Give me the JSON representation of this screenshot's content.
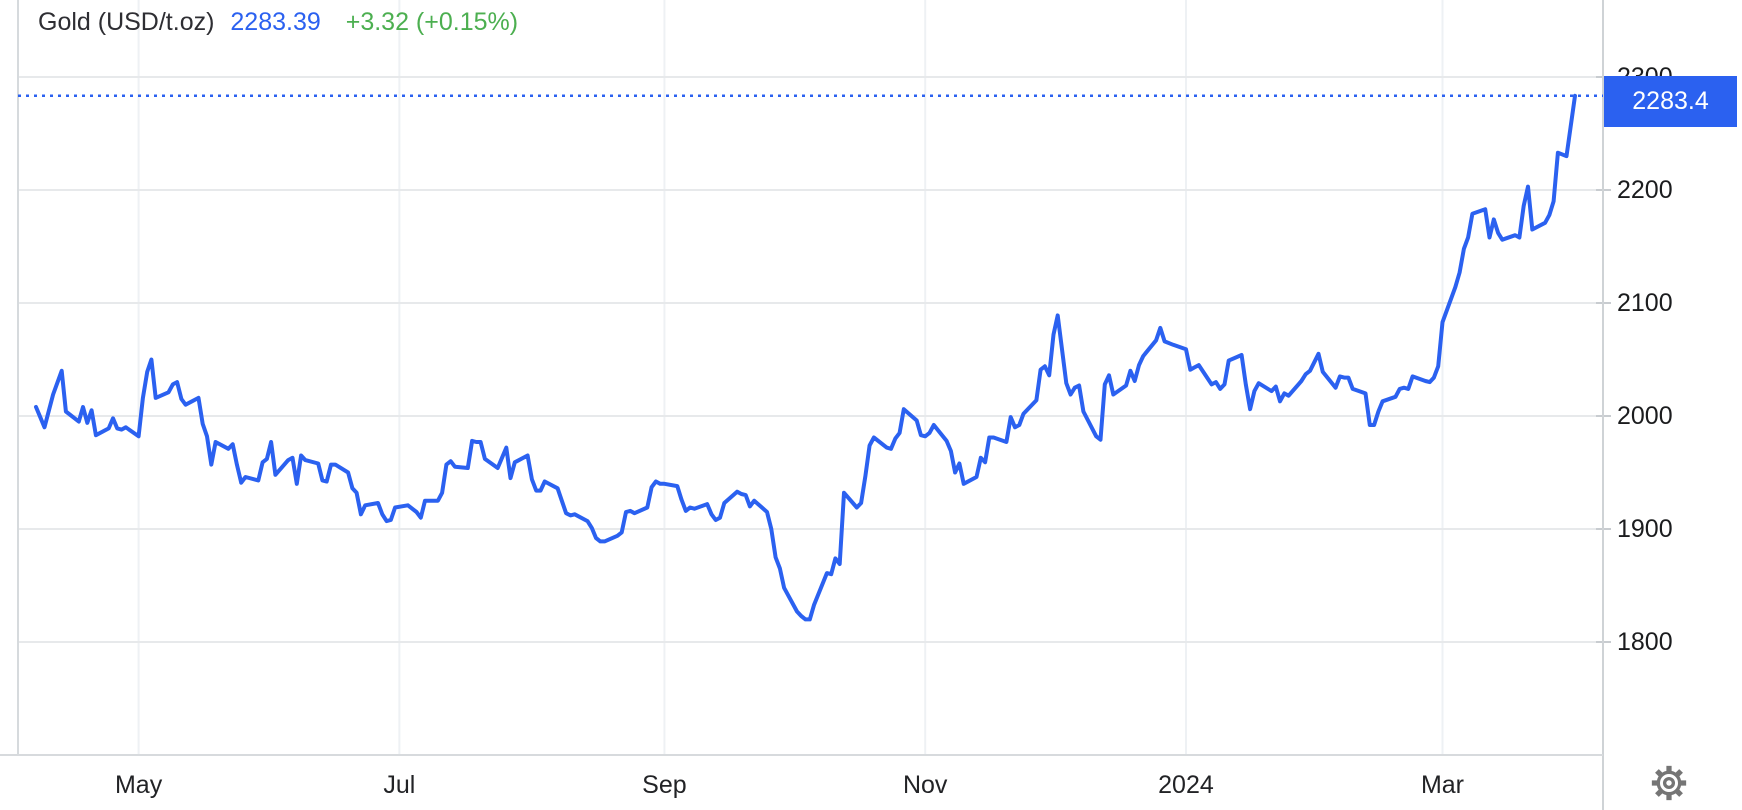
{
  "header": {
    "title": "Gold (USD/t.oz)",
    "price": "2283.39",
    "change": "+3.32 (+0.15%)"
  },
  "price_badge": {
    "label": "2283.4"
  },
  "colors": {
    "line_blue": "#2b61f0",
    "badge_blue": "#2b61f0",
    "price_blue": "#2b61f0",
    "change_green": "#4caf50",
    "h_grid": "#e7e9eb",
    "v_grid": "#eef1f4",
    "axis_border": "#cfd3d6",
    "left_border": "#d6dadd",
    "bottom_axis": "#d7dadd",
    "tick": "#c8ccd0",
    "label_dark": "#1b1c1e",
    "gear_gray": "#757575"
  },
  "chart_data": {
    "type": "line",
    "title": "Gold (USD/t.oz)",
    "ylabel": "",
    "xlabel": "",
    "legend": [],
    "grid": true,
    "current_value": 2283.4,
    "current_value_label": "2283.4",
    "ylim": [
      1700,
      2368
    ],
    "xlim_days": [
      -4.2,
      366.6
    ],
    "y_ticks": [
      2300,
      2200,
      2100,
      2000,
      1900,
      1800
    ],
    "x_ticks": [
      {
        "label": "May",
        "day": 24
      },
      {
        "label": "Jul",
        "day": 85
      },
      {
        "label": "Sep",
        "day": 147
      },
      {
        "label": "Nov",
        "day": 208
      },
      {
        "label": "2024",
        "day": 269
      },
      {
        "label": "Mar",
        "day": 329
      }
    ],
    "x_day0_date": "2023-04-07",
    "points": [
      [
        0,
        2008
      ],
      [
        2,
        1990
      ],
      [
        4,
        2019
      ],
      [
        6,
        2040
      ],
      [
        7,
        2004
      ],
      [
        10,
        1995
      ],
      [
        11,
        2008
      ],
      [
        12,
        1994
      ],
      [
        13,
        2005
      ],
      [
        14,
        1983
      ],
      [
        17,
        1989
      ],
      [
        18,
        1998
      ],
      [
        19,
        1989
      ],
      [
        20,
        1988
      ],
      [
        21,
        1990
      ],
      [
        24,
        1982
      ],
      [
        25,
        2016
      ],
      [
        26,
        2039
      ],
      [
        27,
        2050
      ],
      [
        28,
        2016
      ],
      [
        31,
        2021
      ],
      [
        32,
        2028
      ],
      [
        33,
        2030
      ],
      [
        34,
        2015
      ],
      [
        35,
        2010
      ],
      [
        38,
        2016
      ],
      [
        39,
        1993
      ],
      [
        40,
        1982
      ],
      [
        41,
        1957
      ],
      [
        42,
        1977
      ],
      [
        45,
        1971
      ],
      [
        46,
        1975
      ],
      [
        47,
        1957
      ],
      [
        48,
        1941
      ],
      [
        49,
        1946
      ],
      [
        52,
        1943
      ],
      [
        53,
        1959
      ],
      [
        54,
        1962
      ],
      [
        55,
        1977
      ],
      [
        56,
        1948
      ],
      [
        59,
        1961
      ],
      [
        60,
        1963
      ],
      [
        61,
        1940
      ],
      [
        62,
        1965
      ],
      [
        63,
        1961
      ],
      [
        66,
        1958
      ],
      [
        67,
        1943
      ],
      [
        68,
        1942
      ],
      [
        69,
        1957
      ],
      [
        70,
        1957
      ],
      [
        73,
        1950
      ],
      [
        74,
        1936
      ],
      [
        75,
        1932
      ],
      [
        76,
        1913
      ],
      [
        77,
        1921
      ],
      [
        80,
        1923
      ],
      [
        81,
        1913
      ],
      [
        82,
        1907
      ],
      [
        83,
        1908
      ],
      [
        84,
        1919
      ],
      [
        87,
        1921
      ],
      [
        89,
        1915
      ],
      [
        90,
        1910
      ],
      [
        91,
        1925
      ],
      [
        94,
        1925
      ],
      [
        95,
        1932
      ],
      [
        96,
        1957
      ],
      [
        97,
        1960
      ],
      [
        98,
        1955
      ],
      [
        101,
        1954
      ],
      [
        102,
        1978
      ],
      [
        103,
        1977
      ],
      [
        104,
        1977
      ],
      [
        105,
        1962
      ],
      [
        108,
        1954
      ],
      [
        109,
        1963
      ],
      [
        110,
        1972
      ],
      [
        111,
        1945
      ],
      [
        112,
        1959
      ],
      [
        115,
        1965
      ],
      [
        116,
        1944
      ],
      [
        117,
        1934
      ],
      [
        118,
        1934
      ],
      [
        119,
        1942
      ],
      [
        122,
        1936
      ],
      [
        123,
        1925
      ],
      [
        124,
        1914
      ],
      [
        125,
        1912
      ],
      [
        126,
        1913
      ],
      [
        129,
        1907
      ],
      [
        130,
        1901
      ],
      [
        131,
        1892
      ],
      [
        132,
        1889
      ],
      [
        133,
        1889
      ],
      [
        136,
        1894
      ],
      [
        137,
        1897
      ],
      [
        138,
        1915
      ],
      [
        139,
        1916
      ],
      [
        140,
        1914
      ],
      [
        143,
        1919
      ],
      [
        144,
        1937
      ],
      [
        145,
        1942
      ],
      [
        146,
        1940
      ],
      [
        147,
        1940
      ],
      [
        150,
        1938
      ],
      [
        151,
        1926
      ],
      [
        152,
        1916
      ],
      [
        153,
        1919
      ],
      [
        154,
        1918
      ],
      [
        157,
        1922
      ],
      [
        158,
        1913
      ],
      [
        159,
        1908
      ],
      [
        160,
        1910
      ],
      [
        161,
        1923
      ],
      [
        164,
        1933
      ],
      [
        165,
        1931
      ],
      [
        166,
        1930
      ],
      [
        167,
        1920
      ],
      [
        168,
        1925
      ],
      [
        171,
        1915
      ],
      [
        172,
        1900
      ],
      [
        173,
        1875
      ],
      [
        174,
        1865
      ],
      [
        175,
        1848
      ],
      [
        178,
        1827
      ],
      [
        179,
        1823
      ],
      [
        180,
        1820
      ],
      [
        181,
        1820
      ],
      [
        182,
        1833
      ],
      [
        185,
        1861
      ],
      [
        186,
        1860
      ],
      [
        187,
        1874
      ],
      [
        188,
        1869
      ],
      [
        189,
        1932
      ],
      [
        192,
        1919
      ],
      [
        193,
        1923
      ],
      [
        194,
        1947
      ],
      [
        195,
        1974
      ],
      [
        196,
        1981
      ],
      [
        199,
        1972
      ],
      [
        200,
        1971
      ],
      [
        201,
        1980
      ],
      [
        202,
        1985
      ],
      [
        203,
        2006
      ],
      [
        206,
        1996
      ],
      [
        207,
        1983
      ],
      [
        208,
        1982
      ],
      [
        209,
        1985
      ],
      [
        210,
        1992
      ],
      [
        213,
        1978
      ],
      [
        214,
        1969
      ],
      [
        215,
        1950
      ],
      [
        216,
        1958
      ],
      [
        217,
        1940
      ],
      [
        220,
        1946
      ],
      [
        221,
        1963
      ],
      [
        222,
        1959
      ],
      [
        223,
        1981
      ],
      [
        224,
        1981
      ],
      [
        227,
        1977
      ],
      [
        228,
        1999
      ],
      [
        229,
        1990
      ],
      [
        230,
        1992
      ],
      [
        231,
        2002
      ],
      [
        234,
        2014
      ],
      [
        235,
        2041
      ],
      [
        236,
        2044
      ],
      [
        237,
        2036
      ],
      [
        238,
        2072
      ],
      [
        239,
        2089
      ],
      [
        241,
        2029
      ],
      [
        242,
        2019
      ],
      [
        243,
        2025
      ],
      [
        244,
        2027
      ],
      [
        245,
        2004
      ],
      [
        248,
        1982
      ],
      [
        249,
        1979
      ],
      [
        250,
        2028
      ],
      [
        251,
        2036
      ],
      [
        252,
        2019
      ],
      [
        255,
        2027
      ],
      [
        256,
        2040
      ],
      [
        257,
        2031
      ],
      [
        258,
        2045
      ],
      [
        259,
        2053
      ],
      [
        262,
        2067
      ],
      [
        263,
        2078
      ],
      [
        264,
        2066
      ],
      [
        266,
        2063
      ],
      [
        269,
        2059
      ],
      [
        270,
        2041
      ],
      [
        271,
        2043
      ],
      [
        272,
        2045
      ],
      [
        275,
        2028
      ],
      [
        276,
        2030
      ],
      [
        277,
        2024
      ],
      [
        278,
        2028
      ],
      [
        279,
        2049
      ],
      [
        282,
        2054
      ],
      [
        283,
        2028
      ],
      [
        284,
        2006
      ],
      [
        285,
        2022
      ],
      [
        286,
        2029
      ],
      [
        289,
        2022
      ],
      [
        290,
        2026
      ],
      [
        291,
        2013
      ],
      [
        292,
        2020
      ],
      [
        293,
        2018
      ],
      [
        296,
        2031
      ],
      [
        297,
        2037
      ],
      [
        298,
        2040
      ],
      [
        300,
        2055
      ],
      [
        301,
        2039
      ],
      [
        304,
        2025
      ],
      [
        305,
        2035
      ],
      [
        306,
        2034
      ],
      [
        307,
        2034
      ],
      [
        308,
        2024
      ],
      [
        311,
        2020
      ],
      [
        312,
        1992
      ],
      [
        313,
        1992
      ],
      [
        314,
        2004
      ],
      [
        315,
        2013
      ],
      [
        318,
        2017
      ],
      [
        319,
        2024
      ],
      [
        320,
        2025
      ],
      [
        321,
        2024
      ],
      [
        322,
        2035
      ],
      [
        325,
        2031
      ],
      [
        326,
        2030
      ],
      [
        327,
        2034
      ],
      [
        328,
        2044
      ],
      [
        329,
        2083
      ],
      [
        332,
        2114
      ],
      [
        333,
        2127
      ],
      [
        334,
        2148
      ],
      [
        335,
        2158
      ],
      [
        336,
        2179
      ],
      [
        339,
        2183
      ],
      [
        340,
        2158
      ],
      [
        341,
        2174
      ],
      [
        342,
        2162
      ],
      [
        343,
        2156
      ],
      [
        346,
        2160
      ],
      [
        347,
        2158
      ],
      [
        348,
        2186
      ],
      [
        349,
        2203
      ],
      [
        350,
        2165
      ],
      [
        353,
        2171
      ],
      [
        354,
        2178
      ],
      [
        355,
        2190
      ],
      [
        356,
        2233
      ],
      [
        358,
        2230
      ],
      [
        360,
        2283.4
      ]
    ]
  },
  "gear": {
    "icon": "gear-icon"
  }
}
